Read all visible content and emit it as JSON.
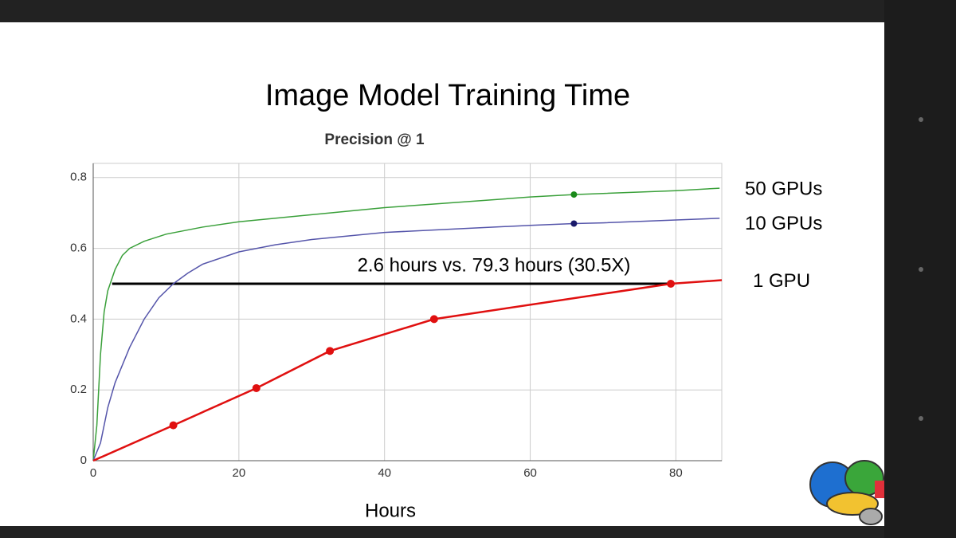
{
  "chart_data": {
    "type": "line",
    "title": "Image Model Training Time",
    "subtitle": "Precision @ 1",
    "x_label": "Hours",
    "xlim": [
      0,
      86.3
    ],
    "ylim": [
      0,
      0.84
    ],
    "xticks": [
      0,
      20,
      40,
      60,
      80
    ],
    "yticks": [
      0,
      0.2,
      0.4,
      0.6,
      0.8
    ],
    "grid": true,
    "series": [
      {
        "name": "50 GPUs",
        "color": "#3aa03a",
        "marker_x": 66,
        "x": [
          0,
          0.5,
          1,
          1.5,
          2,
          3,
          4,
          5,
          7,
          10,
          15,
          20,
          30,
          40,
          50,
          60,
          66,
          70,
          80,
          86
        ],
        "values": [
          0,
          0.1,
          0.3,
          0.42,
          0.48,
          0.54,
          0.58,
          0.6,
          0.62,
          0.64,
          0.66,
          0.675,
          0.695,
          0.715,
          0.73,
          0.745,
          0.752,
          0.755,
          0.763,
          0.77
        ]
      },
      {
        "name": "10 GPUs",
        "color": "#5555aa",
        "marker_x": 66,
        "x": [
          0,
          1,
          2,
          3,
          5,
          7,
          9,
          11,
          13,
          15,
          20,
          25,
          30,
          40,
          50,
          60,
          66,
          70,
          80,
          86
        ],
        "values": [
          0,
          0.05,
          0.15,
          0.22,
          0.32,
          0.4,
          0.46,
          0.5,
          0.53,
          0.555,
          0.59,
          0.61,
          0.625,
          0.645,
          0.655,
          0.665,
          0.67,
          0.672,
          0.68,
          0.685
        ]
      },
      {
        "name": "1 GPU",
        "color": "#e01010",
        "x": [
          0,
          11,
          22.4,
          32.5,
          46.8,
          79.3,
          86.3
        ],
        "values": [
          0,
          0.1,
          0.205,
          0.31,
          0.4,
          0.5,
          0.51
        ]
      }
    ],
    "annotation": {
      "text": "2.6 hours vs. 79.3 hours (30.5X)",
      "x": [
        2.6,
        79.3
      ],
      "y": 0.5
    }
  }
}
